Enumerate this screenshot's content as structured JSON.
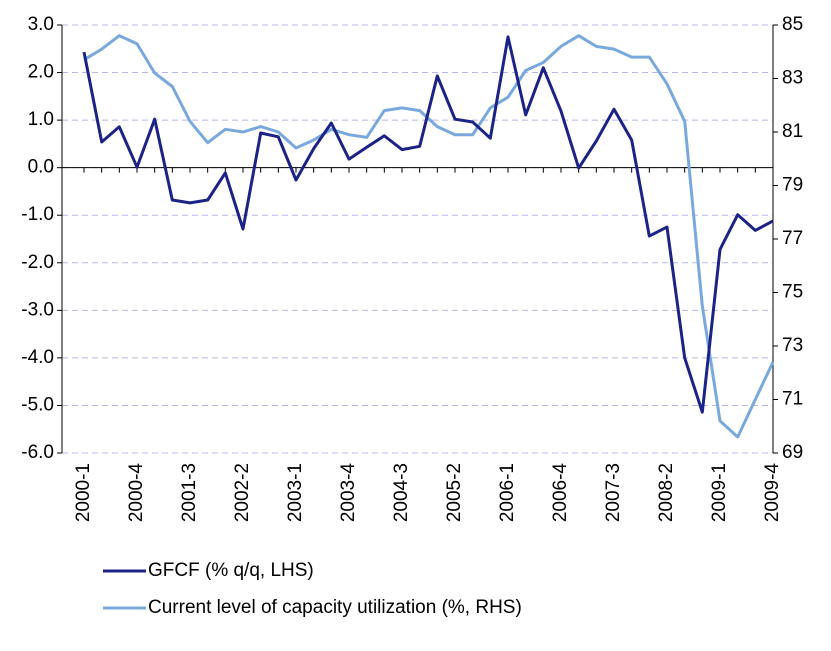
{
  "chart_data": {
    "type": "line",
    "categories": [
      "2000-1",
      null,
      null,
      "2000-4",
      null,
      null,
      "2001-3",
      null,
      null,
      "2002-2",
      null,
      null,
      "2003-1",
      null,
      null,
      "2003-4",
      null,
      null,
      "2004-3",
      null,
      null,
      "2005-2",
      null,
      null,
      "2006-1",
      null,
      null,
      "2006-4",
      null,
      null,
      "2007-3",
      null,
      null,
      "2008-2",
      null,
      null,
      "2009-1",
      null,
      null,
      "2009-4"
    ],
    "series": [
      {
        "name": "GFCF (% q/q, LHS)",
        "color": "#1c2386",
        "values": [
          2.43,
          0.54,
          0.86,
          0.01,
          1.02,
          -0.68,
          -0.74,
          -0.68,
          -0.11,
          -1.29,
          0.73,
          0.65,
          -0.26,
          0.4,
          0.94,
          0.18,
          0.43,
          0.67,
          0.38,
          0.45,
          1.93,
          1.02,
          0.96,
          0.62,
          2.75,
          1.11,
          2.1,
          1.19,
          -0.01,
          0.56,
          1.23,
          0.58,
          -1.44,
          -1.25,
          -4.0,
          -5.14,
          -1.72,
          -0.99,
          -1.32,
          -1.12
        ]
      },
      {
        "name": "Current level of capacity utilization (%, RHS)",
        "color": "#79a9dc",
        "axis": "y2",
        "values": [
          83.7,
          84.1,
          84.6,
          84.3,
          83.2,
          82.7,
          81.4,
          80.6,
          81.1,
          81.0,
          81.2,
          81.0,
          80.4,
          80.7,
          81.1,
          80.9,
          80.8,
          81.8,
          81.9,
          81.8,
          81.2,
          80.9,
          80.9,
          81.9,
          82.3,
          83.3,
          83.6,
          84.2,
          84.6,
          84.2,
          84.1,
          83.8,
          83.8,
          82.8,
          81.4,
          74.5,
          70.2,
          69.6,
          71.0,
          72.4
        ]
      }
    ],
    "ylim": [
      -6,
      3
    ],
    "yticks": [
      {
        "value": 3,
        "label": "3.0"
      },
      {
        "value": 2,
        "label": "2.0"
      },
      {
        "value": 1,
        "label": "1.0"
      },
      {
        "value": 0,
        "label": "0.0"
      },
      {
        "value": -1,
        "label": "-1.0"
      },
      {
        "value": -2,
        "label": "-2.0"
      },
      {
        "value": -3,
        "label": "-3.0"
      },
      {
        "value": -4,
        "label": "-4.0"
      },
      {
        "value": -5,
        "label": "-5.0"
      },
      {
        "value": -6,
        "label": "-6.0"
      }
    ],
    "y2lim": [
      69,
      85
    ],
    "y2ticks": [
      69,
      71,
      73,
      75,
      77,
      79,
      81,
      83,
      85
    ],
    "grid": true
  }
}
